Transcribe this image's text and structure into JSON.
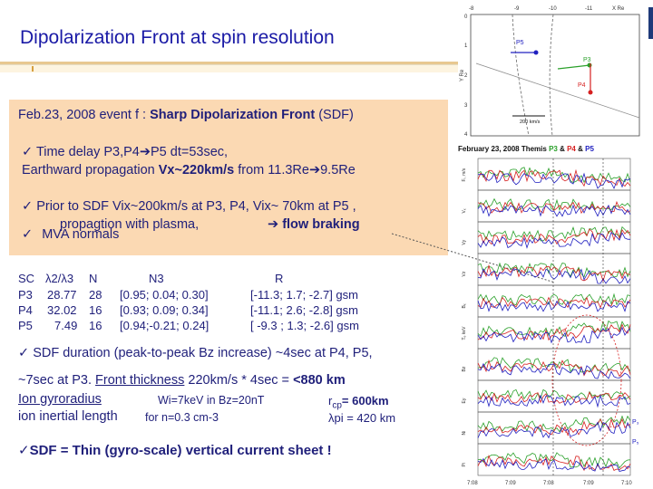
{
  "slide": {
    "title": "Dipolarization Front at spin resolution",
    "event_prefix": "Feb.23, 2008 event f : ",
    "event_bold": "Sharp Dipolarization Front",
    "event_suffix": " (SDF)",
    "check": "✓",
    "arrow": "➔",
    "line1a": "Time delay P3,P4",
    "line1b": "P5 dt=53sec,",
    "line2a": "Earthward propagation ",
    "line2b": "Vx~220km/s",
    "line2c": " from 11.3Re",
    "line2d": "9.5Re",
    "line3": "Prior to SDF  Vix~200km/s at P3, P4,  Vix~ 70km at P5  ,",
    "line4a": "propagtion with plasma,",
    "line4b": "flow braking",
    "mva": "MVA normals",
    "table_header": {
      "sc": "SC",
      "lam": "λ2/λ3",
      "n": "N",
      "n3": "N3",
      "r": "R"
    },
    "table_rows": [
      {
        "sc": "P3",
        "lam": "28.77",
        "n": "28",
        "n3": "[0.95; 0.04; 0.30]",
        "r": "[-11.3; 1.7; -2.7] gsm"
      },
      {
        "sc": "P4",
        "lam": "32.02",
        "n": "16",
        "n3": "[0.93; 0.09; 0.34]",
        "r": "[-11.1; 2.6; -2.8] gsm"
      },
      {
        "sc": "P5",
        "lam": "7.49",
        "n": "16",
        "n3": "[0.94;-0.21; 0.24]",
        "r": "[ -9.3 ; 1.3; -2.6] gsm"
      }
    ],
    "duration": "SDF duration (peak-to-peak Bz increase) ~4sec at P4, P5,",
    "thick_a": "~7sec at P3.  ",
    "thick_b": "Front thickness",
    "thick_c": "  220km/s * 4sec = ",
    "thick_d": "<880 km",
    "gyro_label": "Ion gyroradius",
    "gyro_mid": "Wi=7keV in Bz=20nT",
    "gyro_right": "r",
    "gyro_sub": "cp",
    "gyro_val": "= 600km",
    "inertial_label": "ion inertial length",
    "inertial_mid": "for n=0.3 cm-3",
    "inertial_right": "λpi = 420 km",
    "conclusion": "SDF = Thin (gyro-scale) vertical  current sheet  !"
  },
  "orbit_plot": {
    "x_ticks": [
      "-8",
      "-9",
      "-10",
      "-11",
      "X Re"
    ],
    "y_ticks": [
      "0",
      "1",
      "2",
      "3",
      "4"
    ],
    "ylabel": "Y Re",
    "probes": [
      "P5",
      "P3",
      "P4"
    ],
    "speed_label": "200 km/s"
  },
  "timeseries": {
    "header_prefix": "February 23, 2008  Themis ",
    "probe_labels": [
      "P3",
      "P4",
      "P5"
    ],
    "amp": " & ",
    "panel_labels": [
      "Fᵢ, m/s",
      "Vₓ",
      "Vy",
      "Vz",
      "Bₓ",
      "Tₑ keV",
      "Bz",
      "Ey",
      "Ni",
      "Pi"
    ],
    "time_ticks": [
      "7:08",
      "7:09",
      "7:08",
      "7:09",
      "7:10"
    ],
    "side_labels": [
      "P₃",
      "P₅"
    ],
    "colors": {
      "p3": "#2aa02a",
      "p4": "#d62020",
      "p5": "#2020c0"
    }
  }
}
